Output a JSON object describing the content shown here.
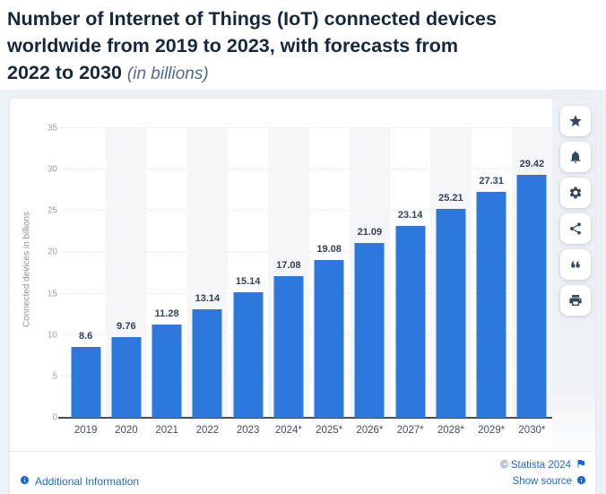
{
  "header": {
    "title_lines": [
      "Number of Internet of Things (IoT) connected devices",
      "worldwide from 2019 to 2023, with forecasts from",
      "2022 to 2030"
    ],
    "subtitle": "(in billions)"
  },
  "chart_data": {
    "type": "bar",
    "title": "Number of Internet of Things (IoT) connected devices worldwide from 2019 to 2023, with forecasts from 2022 to 2030 (in billions)",
    "categories": [
      "2019",
      "2020",
      "2021",
      "2022",
      "2023",
      "2024*",
      "2025*",
      "2026*",
      "2027*",
      "2028*",
      "2029*",
      "2030*"
    ],
    "values": [
      8.6,
      9.76,
      11.28,
      13.14,
      15.14,
      17.08,
      19.08,
      21.09,
      23.14,
      25.21,
      27.31,
      29.42
    ],
    "value_labels": [
      "8.6",
      "9.76",
      "11.28",
      "13.14",
      "15.14",
      "17.08",
      "19.08",
      "21.09",
      "23.14",
      "25.21",
      "27.31",
      "29.42"
    ],
    "xlabel": "",
    "ylabel": "Connected devices in billions",
    "ylim": [
      0,
      35
    ],
    "yticks": [
      0,
      5,
      10,
      15,
      20,
      25,
      30,
      35
    ],
    "grid": true,
    "legend": "none",
    "bar_color": "#2d78dc",
    "stripe_color": "#f5f6f8"
  },
  "toolbar": {
    "buttons": [
      {
        "name": "favorite",
        "icon": "star-icon"
      },
      {
        "name": "alerts",
        "icon": "bell-icon"
      },
      {
        "name": "settings",
        "icon": "gear-icon"
      },
      {
        "name": "share",
        "icon": "share-icon"
      },
      {
        "name": "cite",
        "icon": "quote-icon"
      },
      {
        "name": "print",
        "icon": "printer-icon"
      }
    ]
  },
  "footer": {
    "additional_info_label": "Additional Information",
    "copyright": "© Statista 2024",
    "show_source_label": "Show source"
  }
}
